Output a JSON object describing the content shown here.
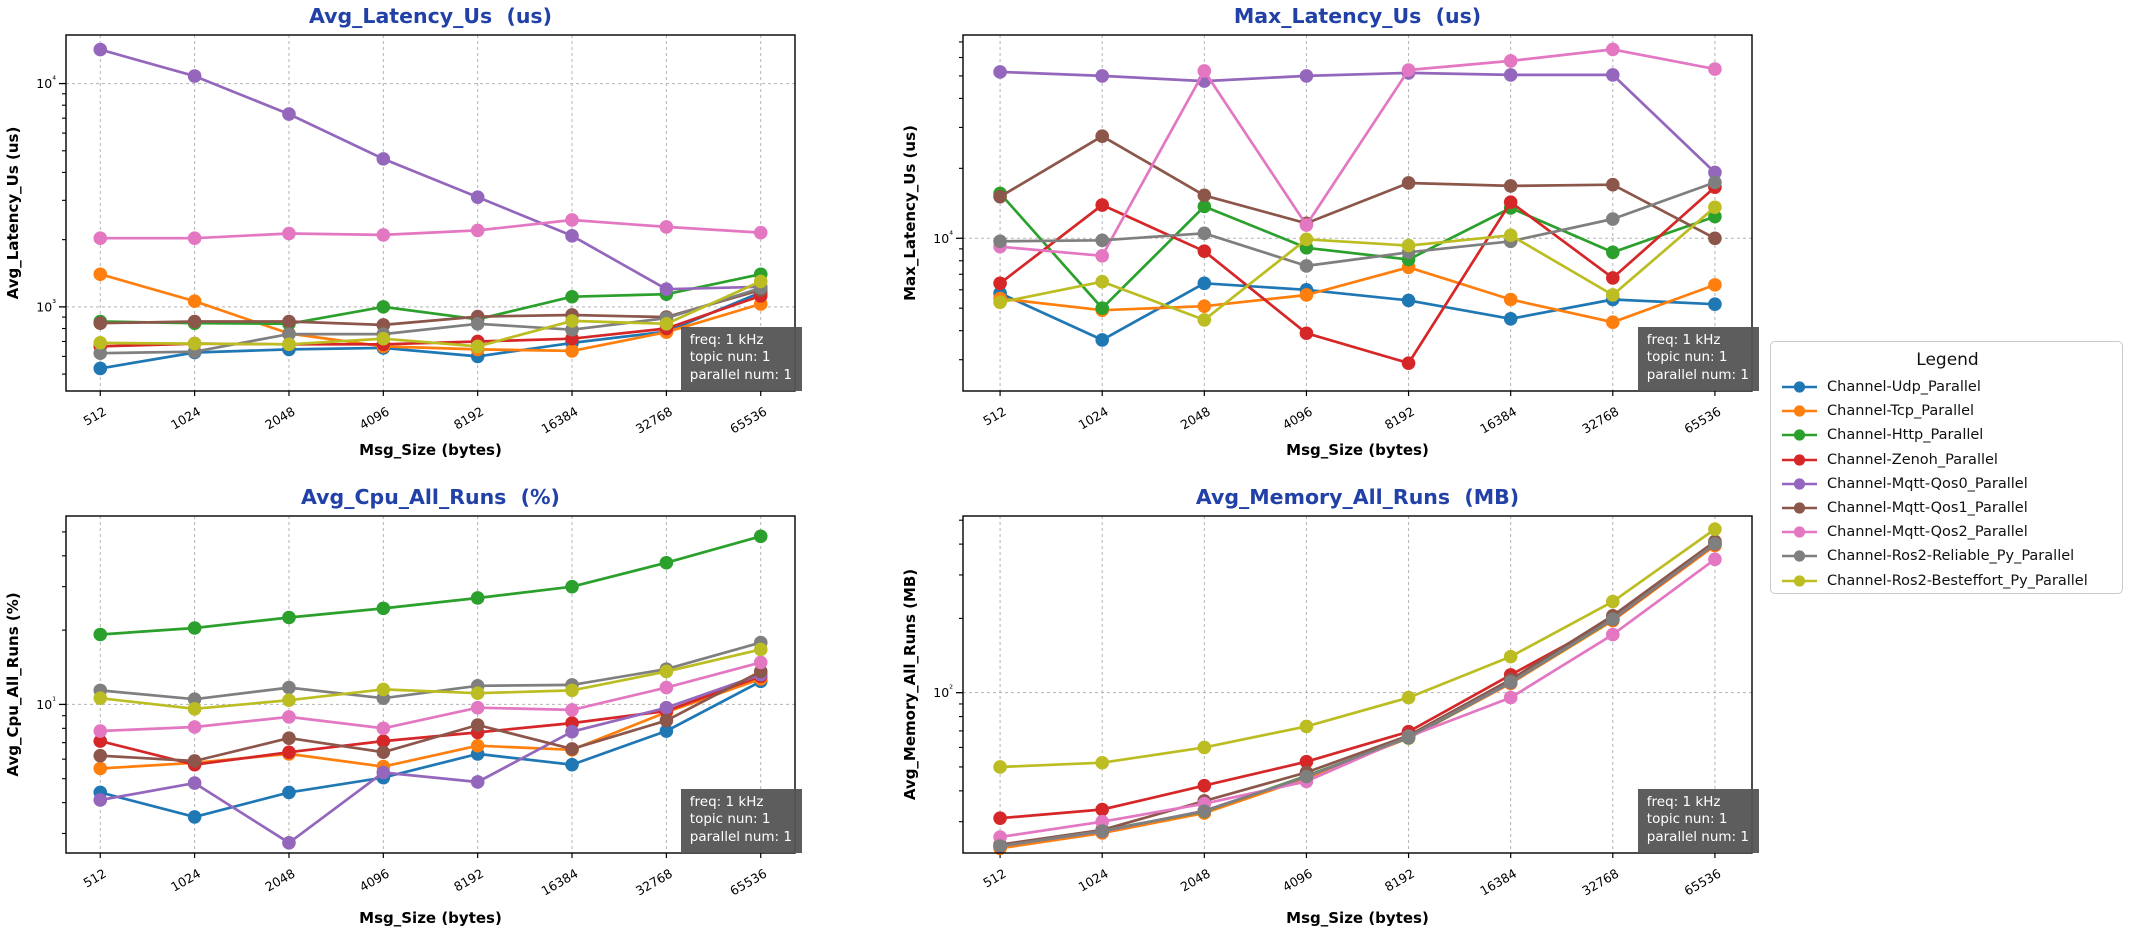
{
  "page": {
    "background": "#ffffff",
    "title_color": "#2141a6"
  },
  "legend": {
    "title": "Legend",
    "items": [
      {
        "label": "Channel-Udp_Parallel",
        "color": "#1f77b4"
      },
      {
        "label": "Channel-Tcp_Parallel",
        "color": "#ff7f0e"
      },
      {
        "label": "Channel-Http_Parallel",
        "color": "#2ca02c"
      },
      {
        "label": "Channel-Zenoh_Parallel",
        "color": "#d62728"
      },
      {
        "label": "Channel-Mqtt-Qos0_Parallel",
        "color": "#9467bd"
      },
      {
        "label": "Channel-Mqtt-Qos1_Parallel",
        "color": "#8c564b"
      },
      {
        "label": "Channel-Mqtt-Qos2_Parallel",
        "color": "#e377c2"
      },
      {
        "label": "Channel-Ros2-Reliable_Py_Parallel",
        "color": "#7f7f7f"
      },
      {
        "label": "Channel-Ros2-Besteffort_Py_Parallel",
        "color": "#bcbd22"
      }
    ]
  },
  "annotation": {
    "lines": [
      "freq: 1 kHz",
      "topic nun: 1",
      "parallel num: 1"
    ]
  },
  "chart_data": [
    {
      "type": "line",
      "title": "Avg_Latency_Us  (us)",
      "xlabel": "Msg_Size (bytes)",
      "ylabel": "Avg_Latency_Us (us)",
      "categories": [
        "512",
        "1024",
        "2048",
        "4096",
        "8192",
        "16384",
        "32768",
        "65536"
      ],
      "y_scale": "log",
      "y_domain": [
        420,
        16500
      ],
      "grid": true,
      "series": [
        {
          "name": "Channel-Udp_Parallel",
          "color": "#1f77b4",
          "values": [
            530,
            625,
            645,
            655,
            600,
            690,
            775,
            1160
          ]
        },
        {
          "name": "Channel-Tcp_Parallel",
          "color": "#ff7f0e",
          "values": [
            1400,
            1060,
            760,
            665,
            645,
            635,
            770,
            1030
          ]
        },
        {
          "name": "Channel-Http_Parallel",
          "color": "#2ca02c",
          "values": [
            860,
            845,
            840,
            1000,
            880,
            1110,
            1140,
            1400
          ]
        },
        {
          "name": "Channel-Zenoh_Parallel",
          "color": "#d62728",
          "values": [
            665,
            685,
            680,
            680,
            700,
            720,
            800,
            1120
          ]
        },
        {
          "name": "Channel-Mqtt-Qos0_Parallel",
          "color": "#9467bd",
          "values": [
            14200,
            10800,
            7300,
            4600,
            3100,
            2080,
            1200,
            1230
          ]
        },
        {
          "name": "Channel-Mqtt-Qos1_Parallel",
          "color": "#8c564b",
          "values": [
            845,
            860,
            860,
            830,
            905,
            920,
            900,
            1190
          ]
        },
        {
          "name": "Channel-Mqtt-Qos2_Parallel",
          "color": "#e377c2",
          "values": [
            2030,
            2030,
            2130,
            2100,
            2200,
            2450,
            2280,
            2150
          ]
        },
        {
          "name": "Channel-Ros2-Reliable_Py_Parallel",
          "color": "#7f7f7f",
          "values": [
            620,
            630,
            755,
            755,
            840,
            790,
            890,
            1215
          ]
        },
        {
          "name": "Channel-Ros2-Besteffort_Py_Parallel",
          "color": "#bcbd22",
          "values": [
            690,
            685,
            680,
            720,
            665,
            865,
            840,
            1300
          ]
        }
      ]
    },
    {
      "type": "line",
      "title": "Max_Latency_Us  (us)",
      "xlabel": "Msg_Size (bytes)",
      "ylabel": "Max_Latency_Us (us)",
      "categories": [
        "512",
        "1024",
        "2048",
        "4096",
        "8192",
        "16384",
        "32768",
        "65536"
      ],
      "y_scale": "log",
      "y_domain": [
        2200,
        75000
      ],
      "grid": true,
      "series": [
        {
          "name": "Channel-Udp_Parallel",
          "color": "#1f77b4",
          "values": [
            5800,
            3650,
            6400,
            6000,
            5400,
            4500,
            5450,
            5200
          ]
        },
        {
          "name": "Channel-Tcp_Parallel",
          "color": "#ff7f0e",
          "values": [
            5500,
            4900,
            5100,
            5700,
            7500,
            5450,
            4350,
            6300
          ]
        },
        {
          "name": "Channel-Http_Parallel",
          "color": "#2ca02c",
          "values": [
            15600,
            5000,
            13700,
            9100,
            8100,
            13500,
            8700,
            12400
          ]
        },
        {
          "name": "Channel-Zenoh_Parallel",
          "color": "#d62728",
          "values": [
            6400,
            13900,
            8800,
            3900,
            2900,
            14300,
            6750,
            16600
          ]
        },
        {
          "name": "Channel-Mqtt-Qos0_Parallel",
          "color": "#9467bd",
          "values": [
            52000,
            50000,
            47500,
            50000,
            51500,
            50500,
            50500,
            19200
          ]
        },
        {
          "name": "Channel-Mqtt-Qos1_Parallel",
          "color": "#8c564b",
          "values": [
            15100,
            27500,
            15300,
            11600,
            17300,
            16800,
            17000,
            10000
          ]
        },
        {
          "name": "Channel-Mqtt-Qos2_Parallel",
          "color": "#e377c2",
          "values": [
            9200,
            8400,
            52500,
            11400,
            53000,
            58000,
            65000,
            53500
          ]
        },
        {
          "name": "Channel-Ros2-Reliable_Py_Parallel",
          "color": "#7f7f7f",
          "values": [
            9700,
            9800,
            10500,
            7600,
            8700,
            9700,
            12100,
            17400
          ]
        },
        {
          "name": "Channel-Ros2-Besteffort_Py_Parallel",
          "color": "#bcbd22",
          "values": [
            5300,
            6500,
            4450,
            9900,
            9300,
            10300,
            5700,
            13600
          ]
        }
      ]
    },
    {
      "type": "line",
      "title": "Avg_Cpu_All_Runs  (%)",
      "xlabel": "Msg_Size (bytes)",
      "ylabel": "Avg_Cpu_All_Runs (%)",
      "categories": [
        "512",
        "1024",
        "2048",
        "4096",
        "8192",
        "16384",
        "32768",
        "65536"
      ],
      "y_scale": "log",
      "y_domain": [
        2.5,
        58
      ],
      "grid": true,
      "series": [
        {
          "name": "Channel-Udp_Parallel",
          "color": "#1f77b4",
          "values": [
            4.4,
            3.5,
            4.4,
            5.05,
            6.3,
            5.7,
            7.8,
            12.4
          ]
        },
        {
          "name": "Channel-Tcp_Parallel",
          "color": "#ff7f0e",
          "values": [
            5.5,
            5.8,
            6.3,
            5.6,
            6.8,
            6.55,
            9.3,
            12.7
          ]
        },
        {
          "name": "Channel-Http_Parallel",
          "color": "#2ca02c",
          "values": [
            19.2,
            20.4,
            22.5,
            24.5,
            27,
            30,
            37.5,
            48
          ]
        },
        {
          "name": "Channel-Zenoh_Parallel",
          "color": "#d62728",
          "values": [
            7.1,
            5.7,
            6.4,
            7.1,
            7.7,
            8.4,
            9.4,
            13.0
          ]
        },
        {
          "name": "Channel-Mqtt-Qos0_Parallel",
          "color": "#9467bd",
          "values": [
            4.1,
            4.8,
            2.75,
            5.3,
            4.85,
            7.75,
            9.7,
            13.2
          ]
        },
        {
          "name": "Channel-Mqtt-Qos1_Parallel",
          "color": "#8c564b",
          "values": [
            6.2,
            5.9,
            7.3,
            6.4,
            8.25,
            6.6,
            8.6,
            13.6
          ]
        },
        {
          "name": "Channel-Mqtt-Qos2_Parallel",
          "color": "#e377c2",
          "values": [
            7.8,
            8.1,
            8.9,
            8.0,
            9.7,
            9.5,
            11.7,
            14.8
          ]
        },
        {
          "name": "Channel-Ros2-Reliable_Py_Parallel",
          "color": "#7f7f7f",
          "values": [
            11.4,
            10.5,
            11.7,
            10.6,
            11.9,
            12.0,
            13.9,
            17.8
          ]
        },
        {
          "name": "Channel-Ros2-Besteffort_Py_Parallel",
          "color": "#bcbd22",
          "values": [
            10.6,
            9.6,
            10.4,
            11.5,
            11.1,
            11.4,
            13.6,
            16.7
          ]
        }
      ]
    },
    {
      "type": "line",
      "title": "Avg_Memory_All_Runs  (MB)",
      "xlabel": "Msg_Size (bytes)",
      "ylabel": "Avg_Memory_All_Runs (MB)",
      "categories": [
        "512",
        "1024",
        "2048",
        "4096",
        "8192",
        "16384",
        "32768",
        "65536"
      ],
      "y_scale": "log",
      "y_domain": [
        22.4,
        520
      ],
      "grid": true,
      "series": [
        {
          "name": "Channel-Udp_Parallel",
          "color": "#1f77b4",
          "values": [
            23.8,
            27.3,
            33,
            45.5,
            66,
            110,
            198,
            400
          ]
        },
        {
          "name": "Channel-Tcp_Parallel",
          "color": "#ff7f0e",
          "values": [
            23.4,
            27.0,
            32.5,
            45,
            65.5,
            109,
            196,
            395
          ]
        },
        {
          "name": "Channel-Http_Parallel",
          "color": "#2ca02c",
          "values": [
            24.0,
            27.6,
            33,
            46,
            65.6,
            110,
            198,
            405
          ]
        },
        {
          "name": "Channel-Zenoh_Parallel",
          "color": "#d62728",
          "values": [
            31,
            33.6,
            42,
            52.5,
            69.5,
            118,
            198,
            400
          ]
        },
        {
          "name": "Channel-Mqtt-Qos0_Parallel",
          "color": "#9467bd",
          "values": [
            23.9,
            27.4,
            33.2,
            45.6,
            66,
            110,
            199,
            402
          ]
        },
        {
          "name": "Channel-Mqtt-Qos1_Parallel",
          "color": "#8c564b",
          "values": [
            24.2,
            27.8,
            36.4,
            47.5,
            67,
            113,
            205,
            410
          ]
        },
        {
          "name": "Channel-Mqtt-Qos2_Parallel",
          "color": "#e377c2",
          "values": [
            26,
            30,
            35.5,
            43.7,
            66.4,
            95.5,
            172,
            347
          ]
        },
        {
          "name": "Channel-Ros2-Reliable_Py_Parallel",
          "color": "#7f7f7f",
          "values": [
            23.9,
            27.5,
            33.1,
            45.7,
            66.2,
            110.5,
            198.5,
            401
          ]
        },
        {
          "name": "Channel-Ros2-Besteffort_Py_Parallel",
          "color": "#bcbd22",
          "values": [
            50,
            52,
            60,
            73,
            95.5,
            140,
            234,
            460
          ]
        }
      ]
    }
  ]
}
